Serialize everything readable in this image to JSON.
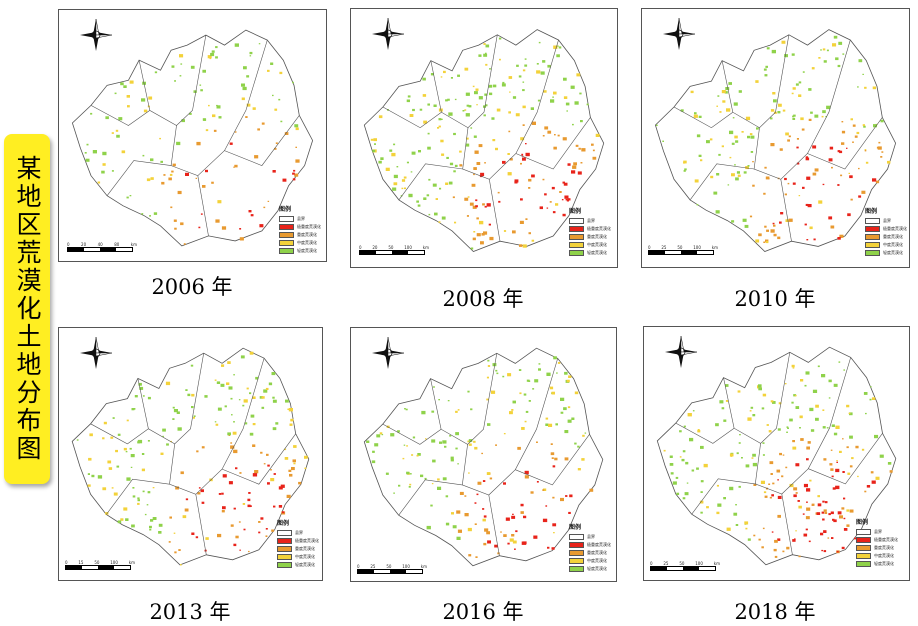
{
  "side_title": "某地区荒漠化土地分布图",
  "colors": {
    "boundary": "#555555",
    "severe": "#e8231a",
    "heavy": "#e89a30",
    "moderate": "#f3d23a",
    "light": "#8fd24a"
  },
  "panels": [
    {
      "caption": "2006 年",
      "legend_title": "图例",
      "legend": [
        "县界",
        "极重度荒漠化",
        "重度荒漠化",
        "中度荒漠化",
        "轻度荒漠化"
      ],
      "scale": [
        "0",
        "20",
        "40",
        "80"
      ],
      "scale_unit": "km"
    },
    {
      "caption": "2008 年",
      "legend_title": "图例",
      "legend": [
        "县界",
        "极重度荒漠化",
        "重度荒漠化",
        "中度荒漠化",
        "轻度荒漠化"
      ],
      "scale": [
        "0",
        "20",
        "50",
        "100"
      ],
      "scale_unit": "km"
    },
    {
      "caption": "2010 年",
      "legend_title": "图例",
      "legend": [
        "县界",
        "极重度荒漠化",
        "重度荒漠化",
        "中度荒漠化",
        "轻度荒漠化"
      ],
      "scale": [
        "0",
        "25",
        "50",
        "100"
      ],
      "scale_unit": "km"
    },
    {
      "caption": "2013 年",
      "legend_title": "图例",
      "legend": [
        "县界",
        "极重度荒漠化",
        "重度荒漠化",
        "中度荒漠化",
        "轻度荒漠化"
      ],
      "scale": [
        "0",
        "15",
        "50",
        "100"
      ],
      "scale_unit": "km"
    },
    {
      "caption": "2016 年",
      "legend_title": "图例",
      "legend": [
        "县界",
        "极重度荒漠化",
        "重度荒漠化",
        "中度荒漠化",
        "轻度荒漠化"
      ],
      "scale": [
        "0",
        "25",
        "50",
        "100"
      ],
      "scale_unit": "km"
    },
    {
      "caption": "2018 年",
      "legend_title": "图例",
      "legend": [
        "县界",
        "极重度荒漠化",
        "重度荒漠化",
        "中度荒漠化",
        "轻度荒漠化"
      ],
      "scale": [
        "0",
        "25",
        "50",
        "100"
      ],
      "scale_unit": "km"
    }
  ]
}
